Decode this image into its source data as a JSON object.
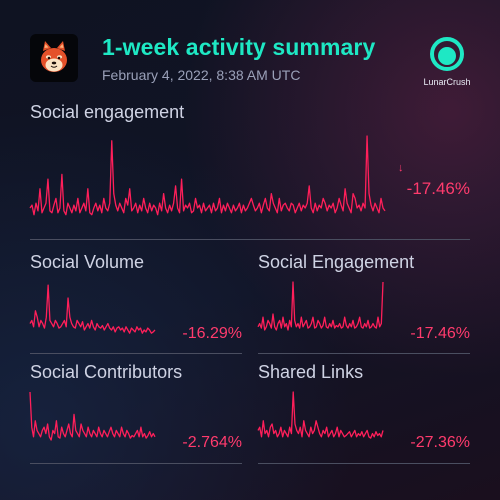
{
  "header": {
    "title": "1-week activity summary",
    "timestamp": "February 4, 2022, 8:38 AM UTC",
    "brand": "LunarCrush"
  },
  "colors": {
    "title": "#1ee8c4",
    "line": "#ff1f5a",
    "change": "#ff3b6d",
    "brand_icon": "#1ee8c4"
  },
  "icons": {
    "token": "shiba-inu-dog-icon",
    "brand": "lunarcrush-logo-icon",
    "trend": "down-arrow-icon"
  },
  "panels": {
    "main": {
      "label": "Social engagement",
      "change": "-17.46%"
    },
    "volume": {
      "label": "Social Volume",
      "change": "-16.29%"
    },
    "engagement": {
      "label": "Social Engagement",
      "change": "-17.46%"
    },
    "contributors": {
      "label": "Social Contributors",
      "change": "-2.764%"
    },
    "links": {
      "label": "Shared Links",
      "change": "-27.36%"
    }
  },
  "chart_data": [
    {
      "type": "line",
      "name": "Social engagement",
      "ylim": [
        0,
        100
      ],
      "y": [
        25,
        28,
        18,
        30,
        22,
        45,
        20,
        25,
        30,
        55,
        22,
        20,
        28,
        35,
        20,
        25,
        60,
        22,
        18,
        30,
        25,
        20,
        28,
        22,
        35,
        20,
        25,
        30,
        22,
        45,
        20,
        18,
        25,
        30,
        22,
        28,
        20,
        35,
        25,
        22,
        30,
        95,
        40,
        28,
        22,
        30,
        25,
        20,
        35,
        28,
        45,
        22,
        25,
        30,
        20,
        28,
        22,
        35,
        25,
        20,
        30,
        22,
        28,
        25,
        18,
        30,
        22,
        40,
        25,
        20,
        28,
        22,
        30,
        48,
        25,
        20,
        55,
        22,
        28,
        25,
        30,
        20,
        22,
        35,
        25,
        28,
        20,
        30,
        22,
        25,
        28,
        20,
        30,
        22,
        25,
        35,
        20,
        28,
        22,
        30,
        25,
        20,
        28,
        22,
        25,
        30,
        20,
        28,
        22,
        25,
        30,
        35,
        28,
        22,
        25,
        30,
        20,
        28,
        35,
        25,
        22,
        40,
        30,
        25,
        20,
        35,
        22,
        28,
        30,
        25,
        22,
        30,
        28,
        20,
        25,
        30,
        22,
        28,
        25,
        30,
        48,
        25,
        20,
        30,
        22,
        28,
        25,
        35,
        30,
        22,
        28,
        25,
        30,
        20,
        25,
        35,
        28,
        22,
        45,
        30,
        25,
        20,
        40,
        35,
        25,
        28,
        22,
        30,
        25,
        100,
        40,
        28,
        22,
        30,
        25,
        20,
        35,
        25,
        22
      ]
    },
    {
      "type": "line",
      "name": "Social Volume",
      "ylim": [
        0,
        100
      ],
      "y": [
        35,
        40,
        30,
        55,
        45,
        30,
        40,
        35,
        28,
        45,
        95,
        40,
        35,
        30,
        40,
        35,
        28,
        30,
        35,
        40,
        30,
        75,
        45,
        35,
        30,
        28,
        40,
        35,
        30,
        38,
        25,
        30,
        35,
        28,
        40,
        30,
        25,
        35,
        30,
        28,
        32,
        25,
        30,
        35,
        28,
        25,
        30,
        22,
        28,
        30,
        25,
        28,
        22,
        30,
        25,
        20,
        28,
        25,
        22,
        30,
        25,
        28,
        20,
        25,
        22,
        28,
        25,
        20,
        22,
        25
      ]
    },
    {
      "type": "line",
      "name": "Social Engagement",
      "ylim": [
        0,
        100
      ],
      "y": [
        30,
        35,
        28,
        45,
        25,
        30,
        40,
        35,
        28,
        50,
        30,
        25,
        35,
        40,
        28,
        45,
        30,
        35,
        25,
        40,
        30,
        100,
        40,
        30,
        35,
        28,
        45,
        30,
        35,
        40,
        28,
        30,
        35,
        45,
        28,
        30,
        40,
        35,
        28,
        32,
        45,
        30,
        28,
        35,
        30,
        40,
        28,
        32,
        30,
        35,
        28,
        30,
        45,
        32,
        28,
        35,
        30,
        40,
        28,
        30,
        35,
        45,
        30,
        28,
        35,
        30,
        40,
        28,
        30,
        35,
        30,
        28,
        45,
        30,
        35,
        100
      ]
    },
    {
      "type": "line",
      "name": "Social Contributors",
      "ylim": [
        0,
        100
      ],
      "y": [
        100,
        45,
        30,
        55,
        40,
        35,
        30,
        40,
        45,
        35,
        50,
        30,
        25,
        40,
        35,
        55,
        30,
        28,
        45,
        35,
        30,
        40,
        50,
        35,
        30,
        65,
        40,
        35,
        30,
        50,
        40,
        35,
        30,
        45,
        35,
        30,
        40,
        35,
        30,
        45,
        35,
        30,
        40,
        35,
        30,
        38,
        45,
        35,
        30,
        40,
        35,
        30,
        45,
        35,
        30,
        40,
        35,
        28,
        32,
        30,
        35,
        40,
        30,
        45,
        30,
        35,
        28,
        32,
        38,
        30,
        35,
        30
      ]
    },
    {
      "type": "line",
      "name": "Shared Links",
      "ylim": [
        0,
        100
      ],
      "y": [
        40,
        45,
        30,
        55,
        35,
        40,
        30,
        45,
        50,
        35,
        40,
        30,
        35,
        45,
        30,
        40,
        35,
        30,
        45,
        35,
        100,
        50,
        40,
        35,
        45,
        30,
        55,
        40,
        35,
        30,
        45,
        35,
        40,
        55,
        45,
        35,
        30,
        40,
        35,
        45,
        30,
        35,
        40,
        30,
        35,
        45,
        30,
        40,
        35,
        30,
        32,
        35,
        38,
        30,
        35,
        40,
        30,
        35,
        32,
        38,
        30,
        35,
        40,
        30,
        28,
        35,
        30,
        38,
        32,
        35,
        30,
        40
      ]
    }
  ]
}
